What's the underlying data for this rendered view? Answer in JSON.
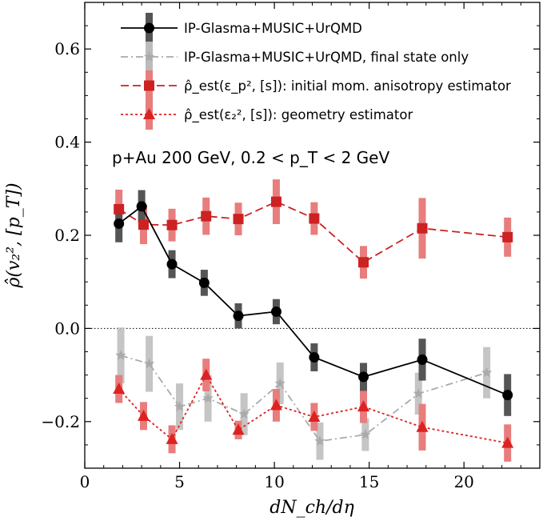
{
  "chart_data": {
    "type": "scatter",
    "title": "",
    "xlabel": "dN_ch/dη",
    "ylabel": "ρ̂(v₂², [p_T])",
    "xlim": [
      0,
      24
    ],
    "ylim": [
      -0.3,
      0.7
    ],
    "xticks": [
      0,
      5,
      10,
      15,
      20
    ],
    "xtick_labels": [
      "0",
      "5",
      "10",
      "15",
      "20"
    ],
    "yticks": [
      -0.2,
      0.0,
      0.2,
      0.4,
      0.6
    ],
    "ytick_labels": [
      "−0.2",
      "0.0",
      "0.2",
      "0.4",
      "0.6"
    ],
    "reference_line": {
      "y": 0.0,
      "style": "dotted"
    },
    "annotation": "p+Au 200 GeV, 0.2 < p_T < 2 GeV",
    "legend_position": "top-right",
    "series": [
      {
        "name": "IP-Glasma+MUSIC+UrQMD",
        "color": "#000000",
        "bar_color": "#555555",
        "marker": "circle",
        "line": "solid",
        "x": [
          1.8,
          3.0,
          4.6,
          6.3,
          8.1,
          10.1,
          12.1,
          14.7,
          17.8,
          22.3
        ],
        "y": [
          0.225,
          0.262,
          0.138,
          0.098,
          0.027,
          0.036,
          -0.062,
          -0.104,
          -0.067,
          -0.143
        ],
        "err": [
          0.04,
          0.035,
          0.03,
          0.028,
          0.027,
          0.027,
          0.03,
          0.03,
          0.045,
          0.045
        ]
      },
      {
        "name": "IP-Glasma+MUSIC+UrQMD, final state only",
        "color": "#aaaaaa",
        "bar_color": "#bbbbbb",
        "marker": "star",
        "line": "dashdot",
        "x": [
          1.9,
          3.4,
          5.0,
          6.5,
          8.4,
          10.3,
          12.4,
          14.8,
          17.6,
          21.2
        ],
        "y": [
          -0.058,
          -0.076,
          -0.168,
          -0.15,
          -0.184,
          -0.118,
          -0.242,
          -0.228,
          -0.14,
          -0.095
        ],
        "err": [
          0.06,
          0.06,
          0.05,
          0.05,
          0.045,
          0.045,
          0.04,
          0.035,
          0.045,
          0.055
        ]
      },
      {
        "name": "ρ̂_est(ε_p², [s]): initial mom. anisotropy estimator",
        "color": "#cc2222",
        "bar_color": "#e87d7d",
        "marker": "square",
        "line": "longdash",
        "x": [
          1.8,
          3.1,
          4.6,
          6.4,
          8.1,
          10.1,
          12.1,
          14.7,
          17.8,
          22.3
        ],
        "y": [
          0.256,
          0.223,
          0.222,
          0.241,
          0.235,
          0.272,
          0.236,
          0.142,
          0.215,
          0.196
        ],
        "err": [
          0.042,
          0.042,
          0.035,
          0.04,
          0.035,
          0.048,
          0.035,
          0.035,
          0.065,
          0.042
        ]
      },
      {
        "name": "ρ̂_est(ε₂², [s]): geometry estimator",
        "color": "#dd2222",
        "bar_color": "#e87d7d",
        "marker": "triangle",
        "line": "dotted",
        "x": [
          1.8,
          3.1,
          4.6,
          6.4,
          8.1,
          10.1,
          12.1,
          14.7,
          17.8,
          22.3
        ],
        "y": [
          -0.13,
          -0.188,
          -0.238,
          -0.1,
          -0.218,
          -0.165,
          -0.19,
          -0.168,
          -0.212,
          -0.246
        ],
        "err": [
          0.03,
          0.03,
          0.03,
          0.035,
          0.02,
          0.035,
          0.03,
          0.035,
          0.05,
          0.04
        ]
      }
    ]
  }
}
